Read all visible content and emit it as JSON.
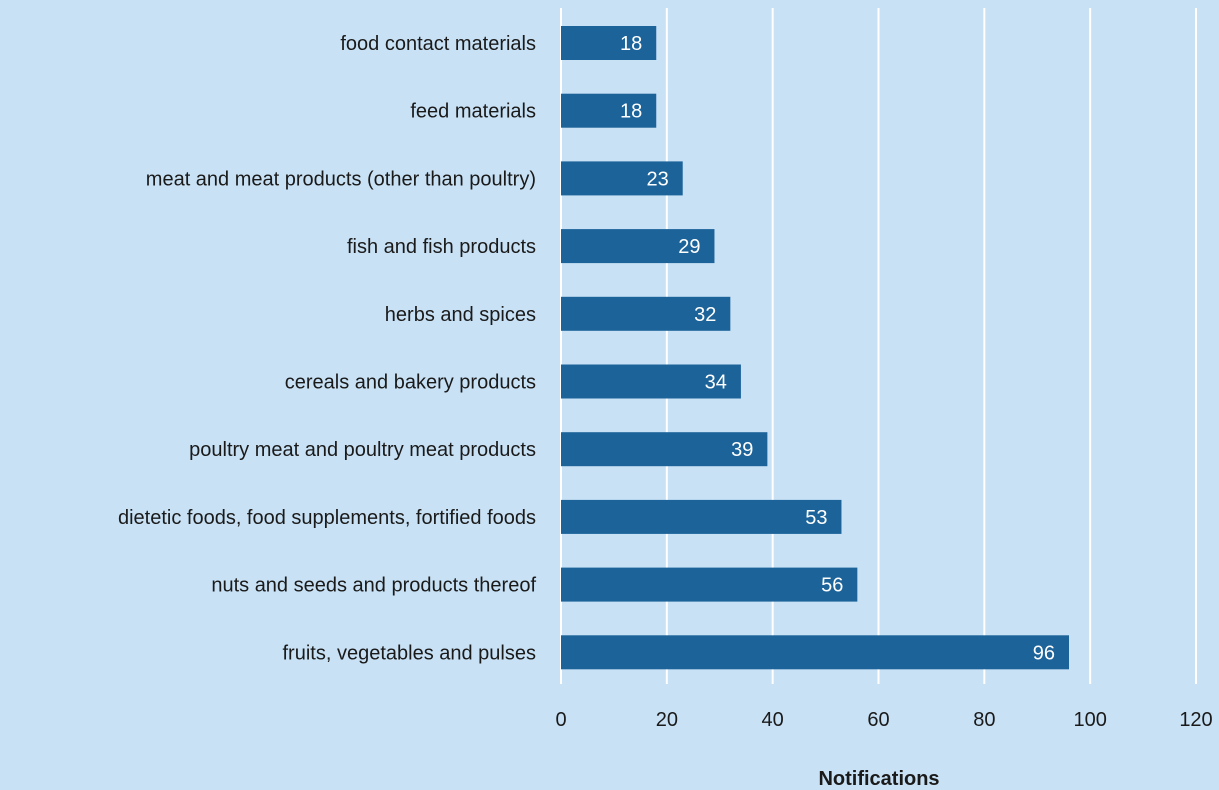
{
  "chart_data": {
    "type": "bar",
    "orientation": "horizontal",
    "categories": [
      "food contact materials",
      "feed materials",
      "meat and meat products (other than poultry)",
      "fish and fish products",
      "herbs and spices",
      "cereals and bakery products",
      "poultry meat and poultry meat products",
      "dietetic foods, food supplements, fortified foods",
      "nuts and seeds and products thereof",
      "fruits, vegetables and pulses"
    ],
    "values": [
      18,
      18,
      23,
      29,
      32,
      34,
      39,
      53,
      56,
      96
    ],
    "data_labels": [
      "18",
      "18",
      "23",
      "29",
      "32",
      "34",
      "39",
      "53",
      "56",
      "96"
    ],
    "xlabel": "Notifications",
    "ylabel": "",
    "xlim": [
      0,
      120
    ],
    "x_ticks": [
      0,
      20,
      40,
      60,
      80,
      100,
      120
    ],
    "x_tick_labels": [
      "0",
      "20",
      "40",
      "60",
      "80",
      "100",
      "120"
    ],
    "grid": "vertical",
    "legend": "none",
    "colors": {
      "background": "#c8e1f5",
      "bar": "#1c6399",
      "gridline": "#ffffff",
      "text": "#1a1a1a",
      "data_label": "#ffffff"
    }
  }
}
